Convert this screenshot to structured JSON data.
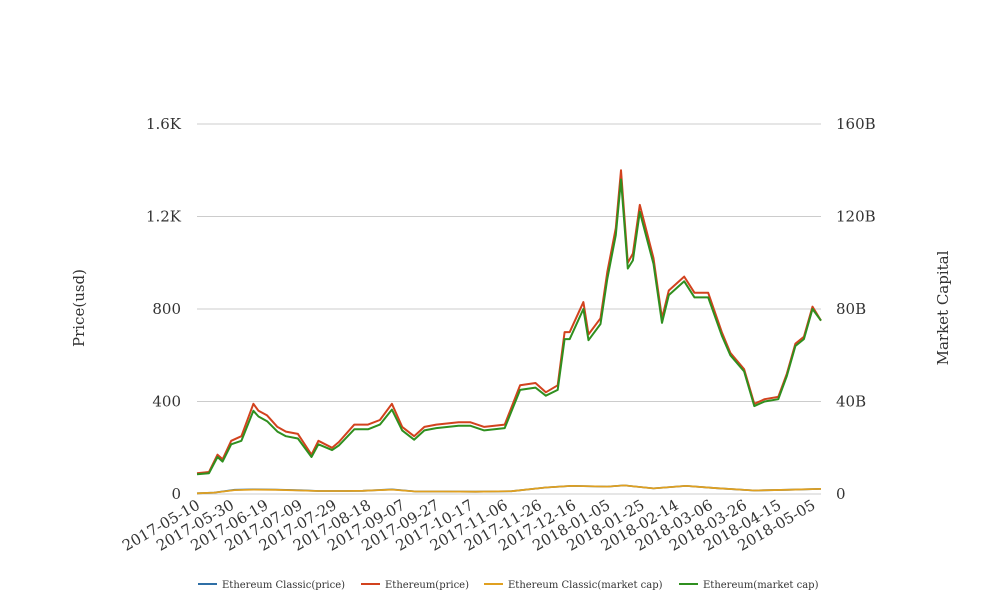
{
  "chart_data": {
    "type": "line",
    "ylabel_left": "Price(usd)",
    "ylabel_right": "Market Capital",
    "y_left_ticks": [
      "0",
      "400",
      "800",
      "1.2K",
      "1.6K"
    ],
    "y_right_ticks": [
      "0",
      "40B",
      "80B",
      "120B",
      "160B"
    ],
    "y_left_range": [
      0,
      1600
    ],
    "y_right_range": [
      0,
      160000000000
    ],
    "x_ticks": [
      "2017-05-10",
      "2017-05-30",
      "2017-06-19",
      "2017-07-09",
      "2017-07-29",
      "2017-08-18",
      "2017-09-07",
      "2017-09-27",
      "2017-10-17",
      "2017-11-06",
      "2017-11-26",
      "2017-12-16",
      "2018-01-05",
      "2018-01-25",
      "2018-02-14",
      "2018-03-06",
      "2018-03-26",
      "2018-04-15",
      "2018-05-05"
    ],
    "x_range": [
      "2017-05-10",
      "2018-05-10"
    ],
    "grid": "horizontal",
    "legend_position": "bottom",
    "series": [
      {
        "name": "Ethereum Classic(price)",
        "axis": "left",
        "color": "#2f6fa6",
        "dates": [
          "2017-05-10",
          "2017-05-20",
          "2017-06-01",
          "2017-06-12",
          "2017-06-25",
          "2017-07-10",
          "2017-07-20",
          "2017-08-05",
          "2017-08-15",
          "2017-09-01",
          "2017-09-15",
          "2017-10-01",
          "2017-10-20",
          "2017-11-10",
          "2017-11-30",
          "2017-12-15",
          "2018-01-05",
          "2018-01-15",
          "2018-02-01",
          "2018-02-20",
          "2018-03-10",
          "2018-04-01",
          "2018-04-20",
          "2018-05-10"
        ],
        "values": [
          3,
          6,
          18,
          20,
          19,
          16,
          13,
          13,
          14,
          20,
          11,
          11,
          10,
          12,
          28,
          35,
          32,
          37,
          24,
          35,
          25,
          15,
          18,
          22
        ]
      },
      {
        "name": "Ethereum(price)",
        "axis": "left",
        "color": "#d2421e",
        "dates": [
          "2017-05-10",
          "2017-05-17",
          "2017-05-22",
          "2017-05-25",
          "2017-05-30",
          "2017-06-05",
          "2017-06-12",
          "2017-06-15",
          "2017-06-20",
          "2017-06-26",
          "2017-07-01",
          "2017-07-08",
          "2017-07-16",
          "2017-07-20",
          "2017-07-28",
          "2017-08-01",
          "2017-08-10",
          "2017-08-18",
          "2017-08-25",
          "2017-09-01",
          "2017-09-07",
          "2017-09-14",
          "2017-09-20",
          "2017-09-27",
          "2017-10-10",
          "2017-10-17",
          "2017-10-25",
          "2017-11-06",
          "2017-11-15",
          "2017-11-24",
          "2017-11-30",
          "2017-12-07",
          "2017-12-11",
          "2017-12-14",
          "2017-12-22",
          "2017-12-25",
          "2018-01-01",
          "2018-01-05",
          "2018-01-10",
          "2018-01-13",
          "2018-01-17",
          "2018-01-20",
          "2018-01-24",
          "2018-02-01",
          "2018-02-06",
          "2018-02-10",
          "2018-02-19",
          "2018-02-25",
          "2018-03-05",
          "2018-03-13",
          "2018-03-18",
          "2018-03-26",
          "2018-04-01",
          "2018-04-07",
          "2018-04-15",
          "2018-04-20",
          "2018-04-25",
          "2018-04-30",
          "2018-05-05",
          "2018-05-10"
        ],
        "values": [
          90,
          95,
          170,
          150,
          230,
          250,
          390,
          360,
          340,
          290,
          270,
          260,
          170,
          230,
          200,
          225,
          300,
          300,
          320,
          390,
          290,
          250,
          290,
          300,
          310,
          310,
          290,
          300,
          470,
          480,
          440,
          470,
          700,
          700,
          830,
          690,
          760,
          960,
          1150,
          1400,
          1000,
          1040,
          1250,
          1020,
          760,
          880,
          940,
          870,
          870,
          700,
          610,
          540,
          390,
          410,
          420,
          520,
          650,
          680,
          810,
          750
        ]
      },
      {
        "name": "Ethereum Classic(market cap)",
        "axis": "right",
        "color": "#e0a020",
        "dates": [
          "2017-05-10",
          "2017-05-20",
          "2017-06-01",
          "2017-06-12",
          "2017-06-25",
          "2017-07-10",
          "2017-07-20",
          "2017-08-05",
          "2017-08-15",
          "2017-09-01",
          "2017-09-15",
          "2017-10-01",
          "2017-10-20",
          "2017-11-10",
          "2017-11-30",
          "2017-12-15",
          "2018-01-05",
          "2018-01-15",
          "2018-02-01",
          "2018-02-20",
          "2018-03-10",
          "2018-04-01",
          "2018-04-20",
          "2018-05-10"
        ],
        "values": [
          300000000,
          600000000,
          1700000000,
          1900000000,
          1800000000,
          1500000000,
          1300000000,
          1300000000,
          1400000000,
          1900000000,
          1100000000,
          1100000000,
          1000000000,
          1200000000,
          2800000000,
          3500000000,
          3200000000,
          3700000000,
          2400000000,
          3500000000,
          2500000000,
          1500000000,
          1800000000,
          2200000000
        ]
      },
      {
        "name": "Ethereum(market cap)",
        "axis": "right",
        "color": "#2f8f1f",
        "dates": [
          "2017-05-10",
          "2017-05-17",
          "2017-05-22",
          "2017-05-25",
          "2017-05-30",
          "2017-06-05",
          "2017-06-12",
          "2017-06-15",
          "2017-06-20",
          "2017-06-26",
          "2017-07-01",
          "2017-07-08",
          "2017-07-16",
          "2017-07-20",
          "2017-07-28",
          "2017-08-01",
          "2017-08-10",
          "2017-08-18",
          "2017-08-25",
          "2017-09-01",
          "2017-09-07",
          "2017-09-14",
          "2017-09-20",
          "2017-09-27",
          "2017-10-10",
          "2017-10-17",
          "2017-10-25",
          "2017-11-06",
          "2017-11-15",
          "2017-11-24",
          "2017-11-30",
          "2017-12-07",
          "2017-12-11",
          "2017-12-14",
          "2017-12-22",
          "2017-12-25",
          "2018-01-01",
          "2018-01-05",
          "2018-01-10",
          "2018-01-13",
          "2018-01-17",
          "2018-01-20",
          "2018-01-24",
          "2018-02-01",
          "2018-02-06",
          "2018-02-10",
          "2018-02-19",
          "2018-02-25",
          "2018-03-05",
          "2018-03-13",
          "2018-03-18",
          "2018-03-26",
          "2018-04-01",
          "2018-04-07",
          "2018-04-15",
          "2018-04-20",
          "2018-04-25",
          "2018-04-30",
          "2018-05-05",
          "2018-05-10"
        ],
        "values": [
          8500000000,
          9000000000,
          16000000000,
          14000000000,
          21500000000,
          23000000000,
          36000000000,
          33500000000,
          31500000000,
          27000000000,
          25000000000,
          24000000000,
          16000000000,
          21500000000,
          19000000000,
          21000000000,
          28000000000,
          28000000000,
          30000000000,
          36500000000,
          27500000000,
          23500000000,
          27500000000,
          28500000000,
          29500000000,
          29500000000,
          27500000000,
          28500000000,
          45000000000,
          46000000000,
          42500000000,
          45000000000,
          67000000000,
          67000000000,
          80000000000,
          66500000000,
          73500000000,
          93000000000,
          112000000000,
          136000000000,
          97500000000,
          101000000000,
          122000000000,
          99500000000,
          74000000000,
          86000000000,
          92000000000,
          85000000000,
          85000000000,
          68500000000,
          60000000000,
          53000000000,
          38000000000,
          40000000000,
          41000000000,
          51000000000,
          64000000000,
          67000000000,
          80000000000,
          75000000000
        ]
      }
    ]
  }
}
